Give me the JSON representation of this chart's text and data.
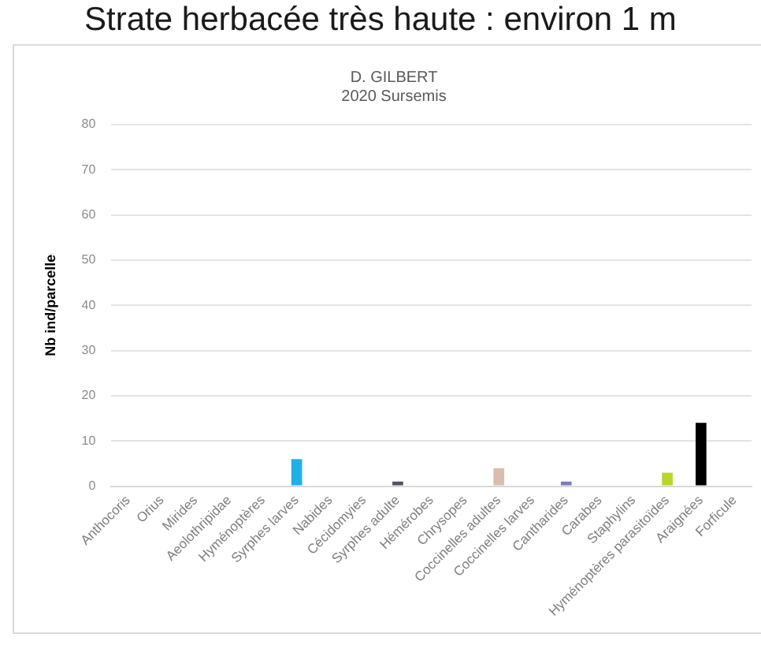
{
  "chart_data": {
    "type": "bar",
    "title": "Strate herbacée très haute : environ 1 m",
    "subtitle": "D. GILBERT\n2020 Sursemis",
    "ylabel": "Nb ind/parcelle",
    "categories": [
      "Anthocoris",
      "Orius",
      "Mirides",
      "Aeolothripidae",
      "Hyménoptères",
      "Syrphes larves",
      "Nabides",
      "Cécidomyies",
      "Syrphes adulte",
      "Hémérobes",
      "Chrysopes",
      "Coccinelles adultes",
      "Coccinelles larves",
      "Cantharides",
      "Carabes",
      "Staphylins",
      "Hyménoptères parasitoïdes",
      "Araignées",
      "Forficule"
    ],
    "values": [
      0,
      0,
      0,
      0,
      0,
      6,
      0,
      0,
      1,
      0,
      0,
      4,
      0,
      1,
      0,
      0,
      3,
      14,
      0
    ],
    "colors": [
      "#a5a5a5",
      "#a5a5a5",
      "#a5a5a5",
      "#a5a5a5",
      "#a5a5a5",
      "#20b0e8",
      "#a5a5a5",
      "#a5a5a5",
      "#4b5263",
      "#a5a5a5",
      "#a5a5a5",
      "#dcbcae",
      "#a5a5a5",
      "#7b7cbc",
      "#a5a5a5",
      "#a5a5a5",
      "#b9d629",
      "#000000",
      "#a5a5a5"
    ],
    "ylim": [
      0,
      80
    ],
    "yticks": [
      0,
      10,
      20,
      30,
      40,
      50,
      60,
      70,
      80
    ],
    "grid": "y"
  }
}
